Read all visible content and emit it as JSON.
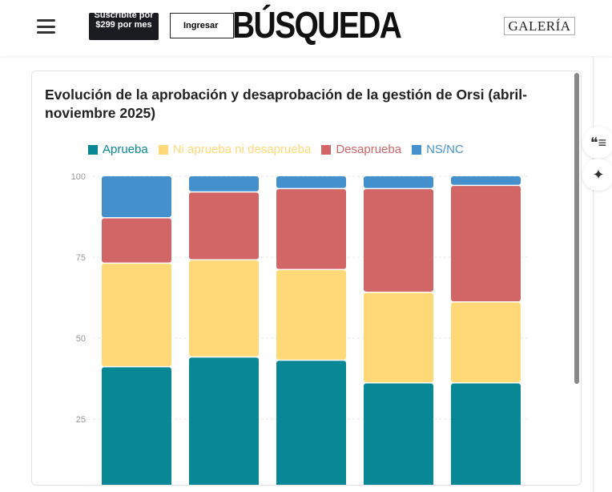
{
  "header": {
    "subscribe_label": "Suscribite por $299 por mes",
    "login_label": "Ingresar",
    "logo": "BÚSQUEDA",
    "partner_logo": "GALERÍA"
  },
  "side_icons": [
    "quote-list-icon",
    "sparkles-icon"
  ],
  "chart_data": {
    "type": "bar",
    "stacked": true,
    "title": "Evolución de la aprobación y desaprobación de la gestión de Orsi (abril-noviembre 2025)",
    "legend_position": "top",
    "ylim": [
      0,
      100
    ],
    "yticks": [
      25,
      50,
      75,
      100
    ],
    "grid": true,
    "categories": [
      "",
      "",
      "",
      "",
      ""
    ],
    "series": [
      {
        "name": "Aprueba",
        "color": "#088895",
        "values": [
          41,
          44,
          43,
          36,
          36
        ]
      },
      {
        "name": "Ni aprueba ni desaprueba",
        "color": "#FFD878",
        "values": [
          32,
          30,
          28,
          28,
          25
        ]
      },
      {
        "name": "Desaprueba",
        "color": "#D26565",
        "values": [
          14,
          21,
          25,
          32,
          36
        ]
      },
      {
        "name": "NS/NC",
        "color": "#4390CC",
        "values": [
          13,
          5,
          4,
          4,
          3
        ]
      }
    ]
  }
}
